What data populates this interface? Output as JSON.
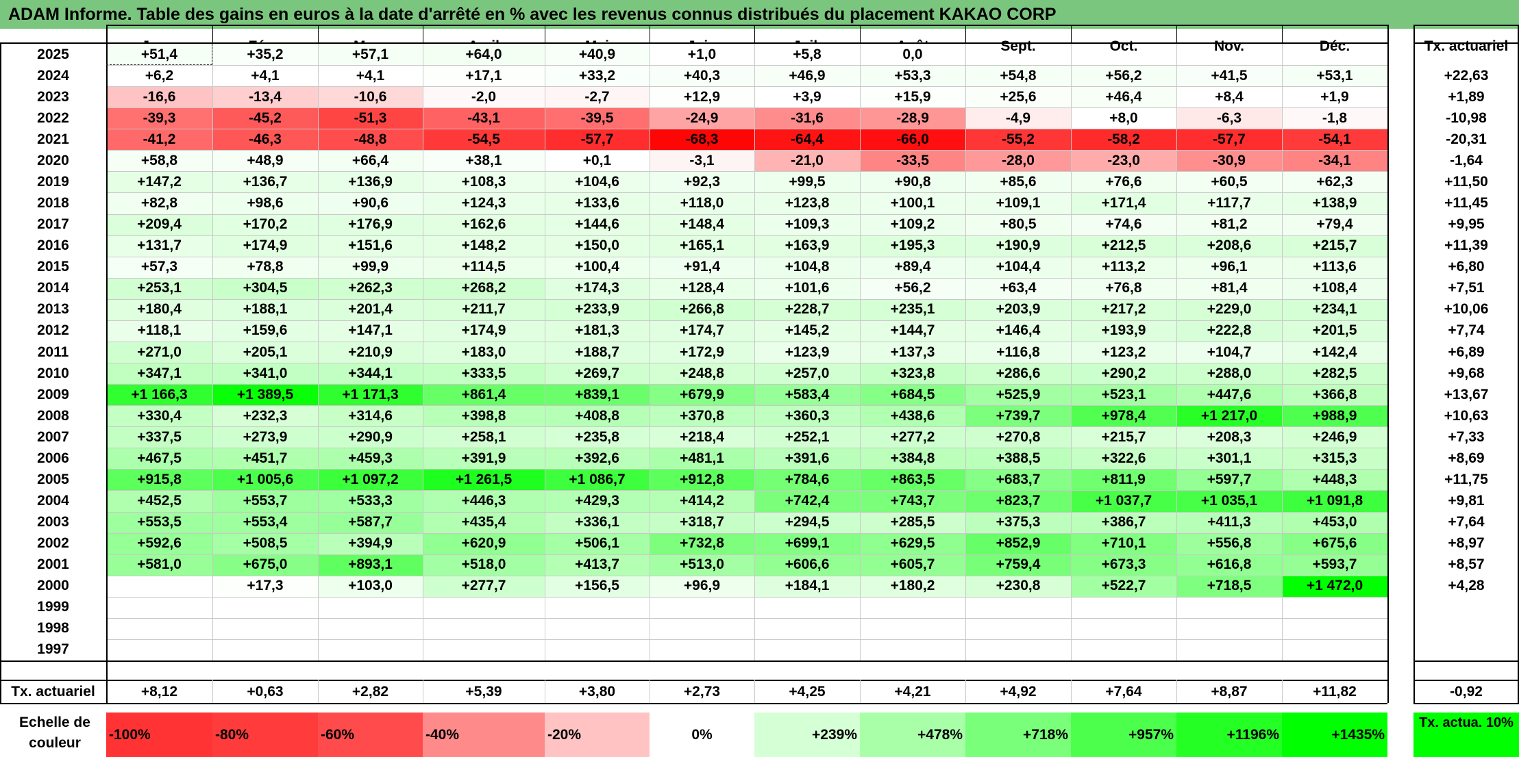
{
  "title": "ADAM Informe. Table des gains en euros à la date d'arrêté en % avec les revenus connus distribués du placement KAKAO CORP",
  "chart_data": {
    "type": "table",
    "columns": [
      "Janv.",
      "Févr.",
      "Mars",
      "Avril",
      "Mai",
      "Juin",
      "Juil.",
      "Août",
      "Sept.",
      "Oct.",
      "Nov.",
      "Déc."
    ],
    "actuarial_header": "Tx. actuariel",
    "rows": [
      {
        "year": "2025",
        "values": [
          "+51,4",
          "+35,2",
          "+57,1",
          "+64,0",
          "+40,9",
          "+1,0",
          "+5,8",
          "0,0",
          "",
          "",
          "",
          ""
        ],
        "actuarial": ""
      },
      {
        "year": "2024",
        "values": [
          "+6,2",
          "+4,1",
          "+4,1",
          "+17,1",
          "+33,2",
          "+40,3",
          "+46,9",
          "+53,3",
          "+54,8",
          "+56,2",
          "+41,5",
          "+53,1"
        ],
        "actuarial": "+22,63"
      },
      {
        "year": "2023",
        "values": [
          "-16,6",
          "-13,4",
          "-10,6",
          "-2,0",
          "-2,7",
          "+12,9",
          "+3,9",
          "+15,9",
          "+25,6",
          "+46,4",
          "+8,4",
          "+1,9"
        ],
        "actuarial": "+1,89"
      },
      {
        "year": "2022",
        "values": [
          "-39,3",
          "-45,2",
          "-51,3",
          "-43,1",
          "-39,5",
          "-24,9",
          "-31,6",
          "-28,9",
          "-4,9",
          "+8,0",
          "-6,3",
          "-1,8"
        ],
        "actuarial": "-10,98"
      },
      {
        "year": "2021",
        "values": [
          "-41,2",
          "-46,3",
          "-48,8",
          "-54,5",
          "-57,7",
          "-68,3",
          "-64,4",
          "-66,0",
          "-55,2",
          "-58,2",
          "-57,7",
          "-54,1"
        ],
        "actuarial": "-20,31"
      },
      {
        "year": "2020",
        "values": [
          "+58,8",
          "+48,9",
          "+66,4",
          "+38,1",
          "+0,1",
          "-3,1",
          "-21,0",
          "-33,5",
          "-28,0",
          "-23,0",
          "-30,9",
          "-34,1"
        ],
        "actuarial": "-1,64"
      },
      {
        "year": "2019",
        "values": [
          "+147,2",
          "+136,7",
          "+136,9",
          "+108,3",
          "+104,6",
          "+92,3",
          "+99,5",
          "+90,8",
          "+85,6",
          "+76,6",
          "+60,5",
          "+62,3"
        ],
        "actuarial": "+11,50"
      },
      {
        "year": "2018",
        "values": [
          "+82,8",
          "+98,6",
          "+90,6",
          "+124,3",
          "+133,6",
          "+118,0",
          "+123,8",
          "+100,1",
          "+109,1",
          "+171,4",
          "+117,7",
          "+138,9"
        ],
        "actuarial": "+11,45"
      },
      {
        "year": "2017",
        "values": [
          "+209,4",
          "+170,2",
          "+176,9",
          "+162,6",
          "+144,6",
          "+148,4",
          "+109,3",
          "+109,2",
          "+80,5",
          "+74,6",
          "+81,2",
          "+79,4"
        ],
        "actuarial": "+9,95"
      },
      {
        "year": "2016",
        "values": [
          "+131,7",
          "+174,9",
          "+151,6",
          "+148,2",
          "+150,0",
          "+165,1",
          "+163,9",
          "+195,3",
          "+190,9",
          "+212,5",
          "+208,6",
          "+215,7"
        ],
        "actuarial": "+11,39"
      },
      {
        "year": "2015",
        "values": [
          "+57,3",
          "+78,8",
          "+99,9",
          "+114,5",
          "+100,4",
          "+91,4",
          "+104,8",
          "+89,4",
          "+104,4",
          "+113,2",
          "+96,1",
          "+113,6"
        ],
        "actuarial": "+6,80"
      },
      {
        "year": "2014",
        "values": [
          "+253,1",
          "+304,5",
          "+262,3",
          "+268,2",
          "+174,3",
          "+128,4",
          "+101,6",
          "+56,2",
          "+63,4",
          "+76,8",
          "+81,4",
          "+108,4"
        ],
        "actuarial": "+7,51"
      },
      {
        "year": "2013",
        "values": [
          "+180,4",
          "+188,1",
          "+201,4",
          "+211,7",
          "+233,9",
          "+266,8",
          "+228,7",
          "+235,1",
          "+203,9",
          "+217,2",
          "+229,0",
          "+234,1"
        ],
        "actuarial": "+10,06"
      },
      {
        "year": "2012",
        "values": [
          "+118,1",
          "+159,6",
          "+147,1",
          "+174,9",
          "+181,3",
          "+174,7",
          "+145,2",
          "+144,7",
          "+146,4",
          "+193,9",
          "+222,8",
          "+201,5"
        ],
        "actuarial": "+7,74"
      },
      {
        "year": "2011",
        "values": [
          "+271,0",
          "+205,1",
          "+210,9",
          "+183,0",
          "+188,7",
          "+172,9",
          "+123,9",
          "+137,3",
          "+116,8",
          "+123,2",
          "+104,7",
          "+142,4"
        ],
        "actuarial": "+6,89"
      },
      {
        "year": "2010",
        "values": [
          "+347,1",
          "+341,0",
          "+344,1",
          "+333,5",
          "+269,7",
          "+248,8",
          "+257,0",
          "+323,8",
          "+286,6",
          "+290,2",
          "+288,0",
          "+282,5"
        ],
        "actuarial": "+9,68"
      },
      {
        "year": "2009",
        "values": [
          "+1 166,3",
          "+1 389,5",
          "+1 171,3",
          "+861,4",
          "+839,1",
          "+679,9",
          "+583,4",
          "+684,5",
          "+525,9",
          "+523,1",
          "+447,6",
          "+366,8"
        ],
        "actuarial": "+13,67"
      },
      {
        "year": "2008",
        "values": [
          "+330,4",
          "+232,3",
          "+314,6",
          "+398,8",
          "+408,8",
          "+370,8",
          "+360,3",
          "+438,6",
          "+739,7",
          "+978,4",
          "+1 217,0",
          "+988,9"
        ],
        "actuarial": "+10,63"
      },
      {
        "year": "2007",
        "values": [
          "+337,5",
          "+273,9",
          "+290,9",
          "+258,1",
          "+235,8",
          "+218,4",
          "+252,1",
          "+277,2",
          "+270,8",
          "+215,7",
          "+208,3",
          "+246,9"
        ],
        "actuarial": "+7,33"
      },
      {
        "year": "2006",
        "values": [
          "+467,5",
          "+451,7",
          "+459,3",
          "+391,9",
          "+392,6",
          "+481,1",
          "+391,6",
          "+384,8",
          "+388,5",
          "+322,6",
          "+301,1",
          "+315,3"
        ],
        "actuarial": "+8,69"
      },
      {
        "year": "2005",
        "values": [
          "+915,8",
          "+1 005,6",
          "+1 097,2",
          "+1 261,5",
          "+1 086,7",
          "+912,8",
          "+784,6",
          "+863,5",
          "+683,7",
          "+811,9",
          "+597,7",
          "+448,3"
        ],
        "actuarial": "+11,75"
      },
      {
        "year": "2004",
        "values": [
          "+452,5",
          "+553,7",
          "+533,3",
          "+446,3",
          "+429,3",
          "+414,2",
          "+742,4",
          "+743,7",
          "+823,7",
          "+1 037,7",
          "+1 035,1",
          "+1 091,8"
        ],
        "actuarial": "+9,81"
      },
      {
        "year": "2003",
        "values": [
          "+553,5",
          "+553,4",
          "+587,7",
          "+435,4",
          "+336,1",
          "+318,7",
          "+294,5",
          "+285,5",
          "+375,3",
          "+386,7",
          "+411,3",
          "+453,0"
        ],
        "actuarial": "+7,64"
      },
      {
        "year": "2002",
        "values": [
          "+592,6",
          "+508,5",
          "+394,9",
          "+620,9",
          "+506,1",
          "+732,8",
          "+699,1",
          "+629,5",
          "+852,9",
          "+710,1",
          "+556,8",
          "+675,6"
        ],
        "actuarial": "+8,97"
      },
      {
        "year": "2001",
        "values": [
          "+581,0",
          "+675,0",
          "+893,1",
          "+518,0",
          "+413,7",
          "+513,0",
          "+606,6",
          "+605,7",
          "+759,4",
          "+673,3",
          "+616,8",
          "+593,7"
        ],
        "actuarial": "+8,57"
      },
      {
        "year": "2000",
        "values": [
          "",
          "+17,3",
          "+103,0",
          "+277,7",
          "+156,5",
          "+96,9",
          "+184,1",
          "+180,2",
          "+230,8",
          "+522,7",
          "+718,5",
          "+1 472,0"
        ],
        "actuarial": "+4,28"
      },
      {
        "year": "1999",
        "values": [
          "",
          "",
          "",
          "",
          "",
          "",
          "",
          "",
          "",
          "",
          "",
          ""
        ],
        "actuarial": ""
      },
      {
        "year": "1998",
        "values": [
          "",
          "",
          "",
          "",
          "",
          "",
          "",
          "",
          "",
          "",
          "",
          ""
        ],
        "actuarial": ""
      },
      {
        "year": "1997",
        "values": [
          "",
          "",
          "",
          "",
          "",
          "",
          "",
          "",
          "",
          "",
          "",
          ""
        ],
        "actuarial": ""
      }
    ],
    "footer": {
      "label": "Tx. actuariel",
      "values": [
        "+8,12",
        "+0,63",
        "+2,82",
        "+5,39",
        "+3,80",
        "+2,73",
        "+4,25",
        "+4,21",
        "+4,92",
        "+7,64",
        "+8,87",
        "+11,82"
      ],
      "actuarial": "-0,92"
    },
    "color_scale": {
      "label": "Echelle de couleur",
      "steps": [
        {
          "text": "-100%",
          "color": "#ff3333"
        },
        {
          "text": "-80%",
          "color": "#ff3b3b"
        },
        {
          "text": "-60%",
          "color": "#ff4b4b"
        },
        {
          "text": "-40%",
          "color": "#ff8a8a"
        },
        {
          "text": "-20%",
          "color": "#ffc3c3"
        },
        {
          "text": "0%",
          "color": "#ffffff"
        },
        {
          "text": "+239%",
          "color": "#d5ffd5"
        },
        {
          "text": "+478%",
          "color": "#a8ffa8"
        },
        {
          "text": "+718%",
          "color": "#7aff7a"
        },
        {
          "text": "+957%",
          "color": "#4cff4c"
        },
        {
          "text": "+1196%",
          "color": "#24ff24"
        },
        {
          "text": "+1435%",
          "color": "#00ff00"
        }
      ],
      "actuarial_label": "Tx. actua. 10%",
      "actuarial_color": "#00ff00"
    }
  }
}
